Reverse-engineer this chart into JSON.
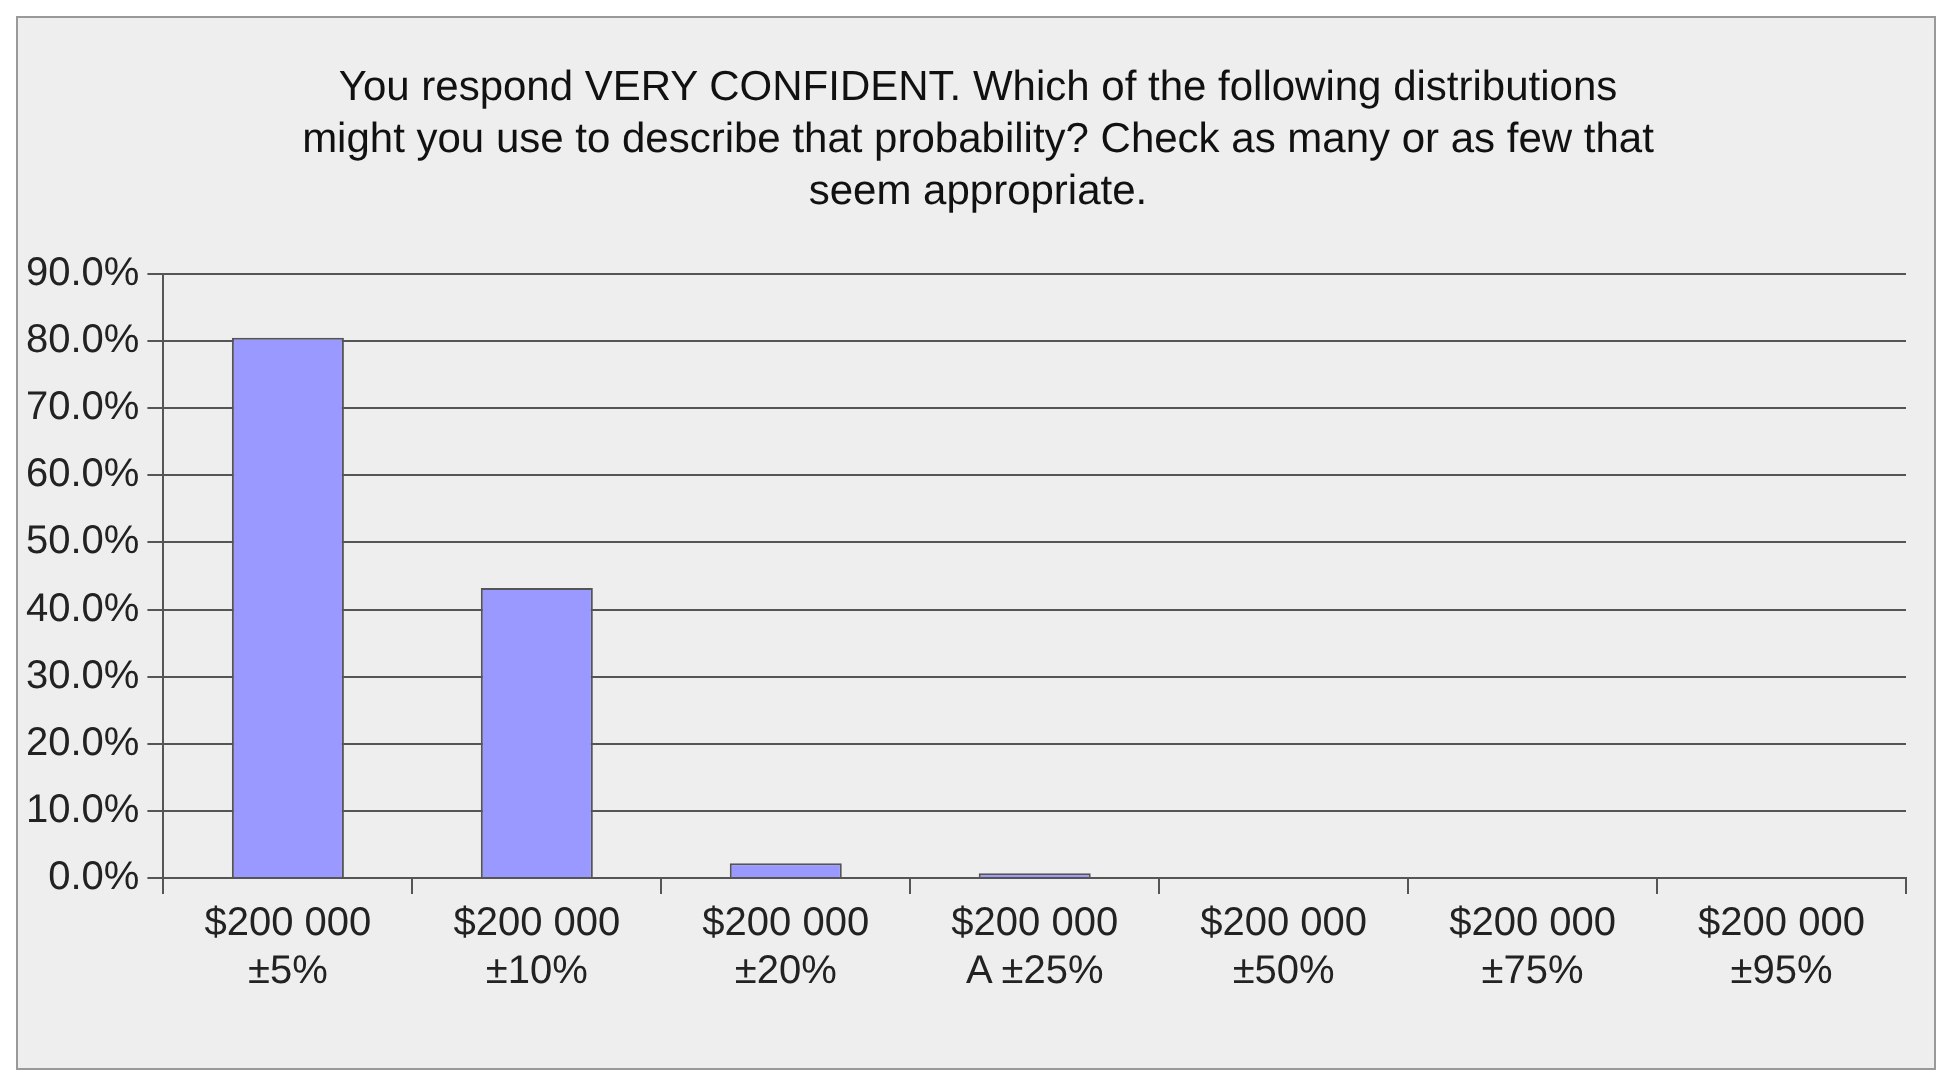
{
  "chart_data": {
    "type": "bar",
    "title": "You respond VERY CONFIDENT. Which of the following distributions might you use to describe that probability? Check as many or as few that seem appropriate.",
    "categories": [
      "$200 000\n±5%",
      "$200 000\n±10%",
      "$200 000\n±20%",
      "$200 000\nA ±25%",
      "$200 000\n±50%",
      "$200 000\n±75%",
      "$200 000\n±95%"
    ],
    "values": [
      80.5,
      43.2,
      2.2,
      0.7,
      0,
      0,
      0
    ],
    "color": "#9999ff",
    "ylim": [
      0,
      90
    ],
    "yticks": [
      {
        "value": 0,
        "label": "0.0%"
      },
      {
        "value": 10,
        "label": "10.0%"
      },
      {
        "value": 20,
        "label": "20.0%"
      },
      {
        "value": 30,
        "label": "30.0%"
      },
      {
        "value": 40,
        "label": "40.0%"
      },
      {
        "value": 50,
        "label": "50.0%"
      },
      {
        "value": 60,
        "label": "60.0%"
      },
      {
        "value": 70,
        "label": "70.0%"
      },
      {
        "value": 80,
        "label": "80.0%"
      },
      {
        "value": 90,
        "label": "90.0%"
      }
    ],
    "grid": "y",
    "legend": false
  }
}
